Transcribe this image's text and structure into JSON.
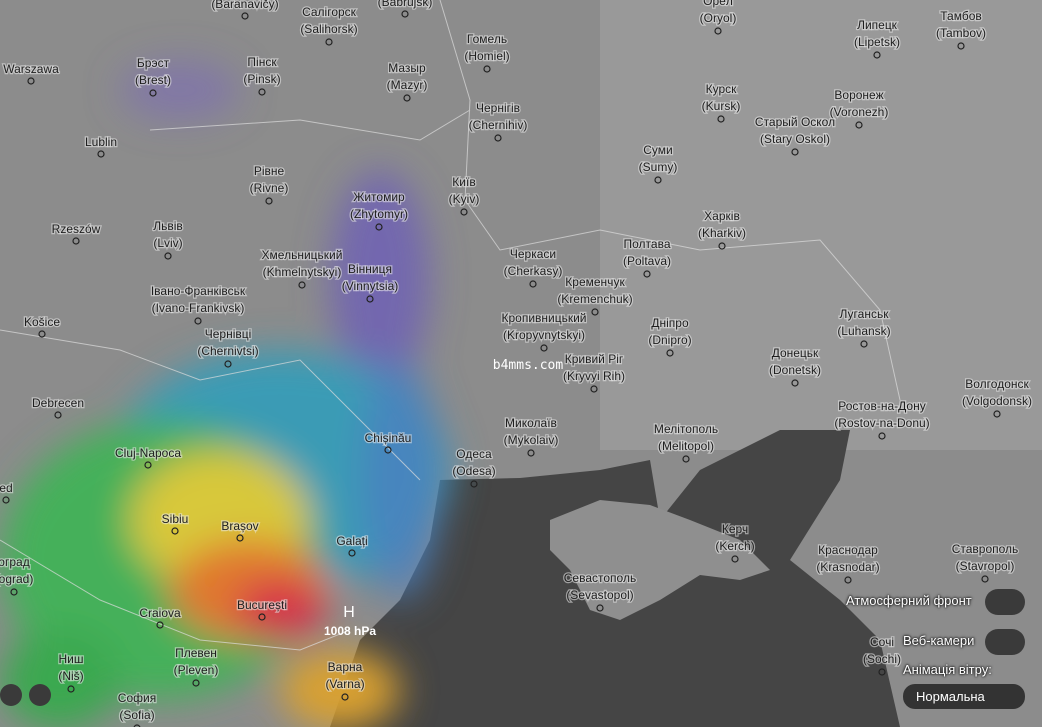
{
  "map": {
    "cities": [
      {
        "name": "(Baranavičy)"
      },
      {
        "name": "Салігорск",
        "latin": "(Salihorsk)"
      },
      {
        "name": "(Babrujsk)"
      },
      {
        "name": "Орёл",
        "latin": "(Oryol)"
      },
      {
        "name": "Липецк",
        "latin": "(Lipetsk)"
      },
      {
        "name": "Тамбов",
        "latin": "(Tambov)"
      },
      {
        "name": "Warszawa"
      },
      {
        "name": "Брэст",
        "latin": "(Brest)"
      },
      {
        "name": "Пінск",
        "latin": "(Pinsk)"
      },
      {
        "name": "Мазыр",
        "latin": "(Mazyr)"
      },
      {
        "name": "Гомель",
        "latin": "(Homiel)"
      },
      {
        "name": "Курск",
        "latin": "(Kursk)"
      },
      {
        "name": "Воронеж",
        "latin": "(Voronezh)"
      },
      {
        "name": "Lublin"
      },
      {
        "name": "Чернігів",
        "latin": "(Chernihiv)"
      },
      {
        "name": "Старый Оскол",
        "latin": "(Stary Oskol)"
      },
      {
        "name": "Суми",
        "latin": "(Sumy)"
      },
      {
        "name": "Рівне",
        "latin": "(Rivne)"
      },
      {
        "name": "Житомир",
        "latin": "(Zhytomyr)"
      },
      {
        "name": "Київ",
        "latin": "(Kyiv)"
      },
      {
        "name": "Rzeszów"
      },
      {
        "name": "Львів",
        "latin": "(Lviv)"
      },
      {
        "name": "Харків",
        "latin": "(Kharkiv)"
      },
      {
        "name": "Полтава",
        "latin": "(Poltava)"
      },
      {
        "name": "Черкаси",
        "latin": "(Cherkasy)"
      },
      {
        "name": "Хмельницький",
        "latin": "(Khmelnytskyi)"
      },
      {
        "name": "Вінниця",
        "latin": "(Vinnytsia)"
      },
      {
        "name": "Кременчук",
        "latin": "(Kremenchuk)"
      },
      {
        "name": "Івано-Франківськ",
        "latin": "(Ivano-Frankivsk)"
      },
      {
        "name": "Košice"
      },
      {
        "name": "Кропивницький",
        "latin": "(Kropyvnytskyi)"
      },
      {
        "name": "Дніпро",
        "latin": "(Dnipro)"
      },
      {
        "name": "Луганськ",
        "latin": "(Luhansk)"
      },
      {
        "name": "Чернівці",
        "latin": "(Chernivtsi)"
      },
      {
        "name": "Донецьк",
        "latin": "(Donetsk)"
      },
      {
        "name": "Кривий Ріг",
        "latin": "(Kryvyi Rih)"
      },
      {
        "name": "Волгодонск",
        "latin": "(Volgodonsk)"
      },
      {
        "name": "Debrecen"
      },
      {
        "name": "Ростов-на-Дону",
        "latin": "(Rostov-na-Donu)"
      },
      {
        "name": "Миколаїв",
        "latin": "(Mykolaiv)"
      },
      {
        "name": "Мелітополь",
        "latin": "(Melitopol)"
      },
      {
        "name": "Chișinău"
      },
      {
        "name": "Одеса",
        "latin": "(Odesa)"
      },
      {
        "name": "Cluj-Napoca"
      },
      {
        "name": "ed"
      },
      {
        "name": "Sibiu"
      },
      {
        "name": "Brașov"
      },
      {
        "name": "Galați"
      },
      {
        "name": "Керч",
        "latin": "(Kerch)"
      },
      {
        "name": "Краснодар",
        "latin": "(Krasnodar)"
      },
      {
        "name": "Ставрополь",
        "latin": "(Stavropol)"
      },
      {
        "name": "оград",
        "latin": "(ograd)"
      },
      {
        "name": "Севастополь",
        "latin": "(Sevastopol)"
      },
      {
        "name": "Craiova"
      },
      {
        "name": "București"
      },
      {
        "name": "Сочі",
        "latin": "(Sochi)"
      },
      {
        "name": "Плевен",
        "latin": "(Pleven)"
      },
      {
        "name": "Варна",
        "latin": "(Varna)"
      },
      {
        "name": "Ниш",
        "latin": "(Niš)"
      },
      {
        "name": "София",
        "latin": "(Sofia)"
      }
    ],
    "pressure": {
      "symbol": "H",
      "label": "1008 hPa"
    },
    "watermark": "b4mms.com"
  },
  "controls": {
    "front": "Атмосферний фронт",
    "webcams": "Веб-камери",
    "wind_label": "Анімація вітру:",
    "wind_value": "Нормальна"
  }
}
